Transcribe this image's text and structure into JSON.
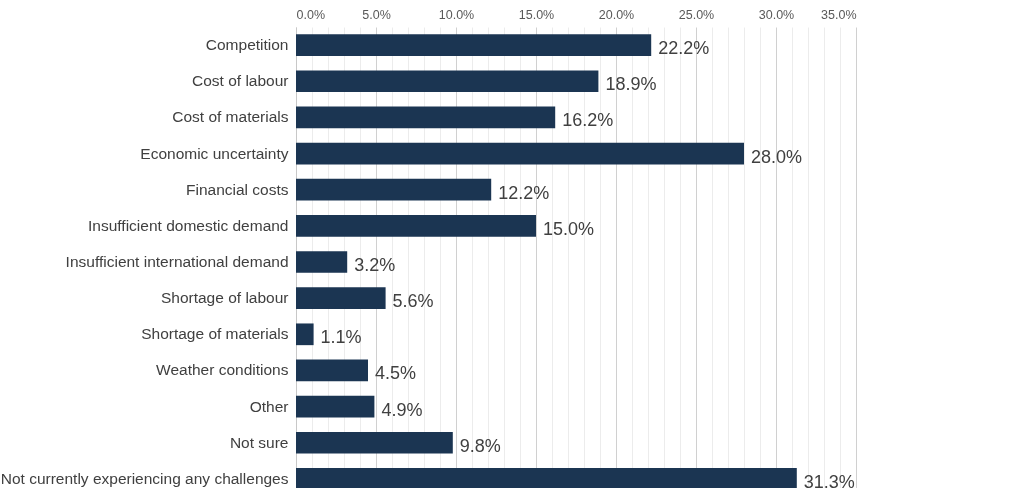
{
  "chart_data": {
    "type": "bar",
    "orientation": "horizontal",
    "categories": [
      "Competition",
      "Cost of labour",
      "Cost of materials",
      "Economic uncertainty",
      "Financial costs",
      "Insufficient domestic demand",
      "Insufficient international demand",
      "Shortage of labour",
      "Shortage of materials",
      "Weather conditions",
      "Other",
      "Not sure",
      "Not currently experiencing any challenges"
    ],
    "values": [
      22.2,
      18.9,
      16.2,
      28.0,
      12.2,
      15.0,
      3.2,
      5.6,
      1.1,
      4.5,
      4.9,
      9.8,
      31.3
    ],
    "value_labels": [
      "22.2%",
      "18.9%",
      "16.2%",
      "28.0%",
      "12.2%",
      "15.0%",
      "3.2%",
      "5.6%",
      "1.1%",
      "4.5%",
      "4.9%",
      "9.8%",
      "31.3%"
    ],
    "color": "#1b3552",
    "xlim": [
      0,
      35
    ],
    "xticks": [
      {
        "value": 0,
        "label": "0.0%"
      },
      {
        "value": 1,
        "label": null
      },
      {
        "value": 2,
        "label": null
      },
      {
        "value": 3,
        "label": null
      },
      {
        "value": 4,
        "label": null
      },
      {
        "value": 5,
        "label": "5.0%"
      },
      {
        "value": 6,
        "label": null
      },
      {
        "value": 7,
        "label": null
      },
      {
        "value": 8,
        "label": null
      },
      {
        "value": 9,
        "label": null
      },
      {
        "value": 10,
        "label": "10.0%"
      },
      {
        "value": 11,
        "label": null
      },
      {
        "value": 12,
        "label": null
      },
      {
        "value": 13,
        "label": null
      },
      {
        "value": 14,
        "label": null
      },
      {
        "value": 15,
        "label": "15.0%"
      },
      {
        "value": 16,
        "label": null
      },
      {
        "value": 17,
        "label": null
      },
      {
        "value": 18,
        "label": null
      },
      {
        "value": 19,
        "label": null
      },
      {
        "value": 20,
        "label": "20.0%"
      },
      {
        "value": 21,
        "label": null
      },
      {
        "value": 22,
        "label": null
      },
      {
        "value": 23,
        "label": null
      },
      {
        "value": 24,
        "label": null
      },
      {
        "value": 25,
        "label": "25.0%"
      },
      {
        "value": 26,
        "label": null
      },
      {
        "value": 27,
        "label": null
      },
      {
        "value": 28,
        "label": null
      },
      {
        "value": 29,
        "label": null
      },
      {
        "value": 30,
        "label": "30.0%"
      },
      {
        "value": 31,
        "label": null
      },
      {
        "value": 32,
        "label": null
      },
      {
        "value": 33,
        "label": null
      },
      {
        "value": 34,
        "label": null
      },
      {
        "value": 35,
        "label": "35.0%"
      }
    ],
    "grid": "x"
  }
}
